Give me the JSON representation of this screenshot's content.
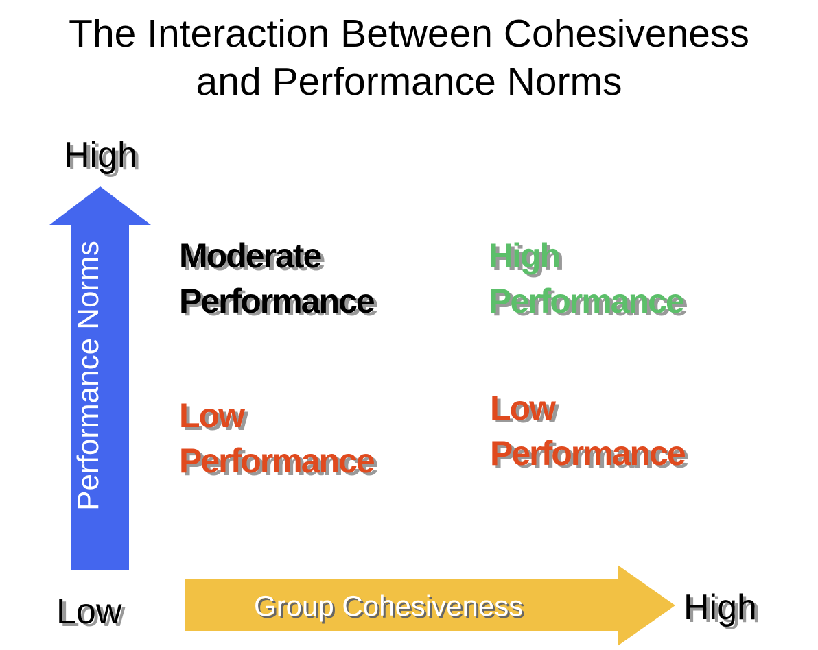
{
  "title": {
    "line1": "The Interaction Between Cohesiveness",
    "line2": "and Performance Norms"
  },
  "y_axis": {
    "label": "Performance Norms",
    "high_label": "High",
    "low_label": "Low",
    "arrow_color": "#4466ee"
  },
  "x_axis": {
    "label": "Group Cohesiveness",
    "high_label": "High",
    "arrow_color": "#f2c144"
  },
  "quadrants": {
    "top_left": {
      "line1": "Moderate",
      "line2": "Performance",
      "color": "#000000"
    },
    "top_right": {
      "line1": "High",
      "line2": "Performance",
      "color": "#5cbf6a"
    },
    "bottom_left": {
      "line1": "Low",
      "line2": "Performance",
      "color": "#e04a1e"
    },
    "bottom_right": {
      "line1": "Low",
      "line2": "Performance",
      "color": "#e04a1e"
    }
  }
}
